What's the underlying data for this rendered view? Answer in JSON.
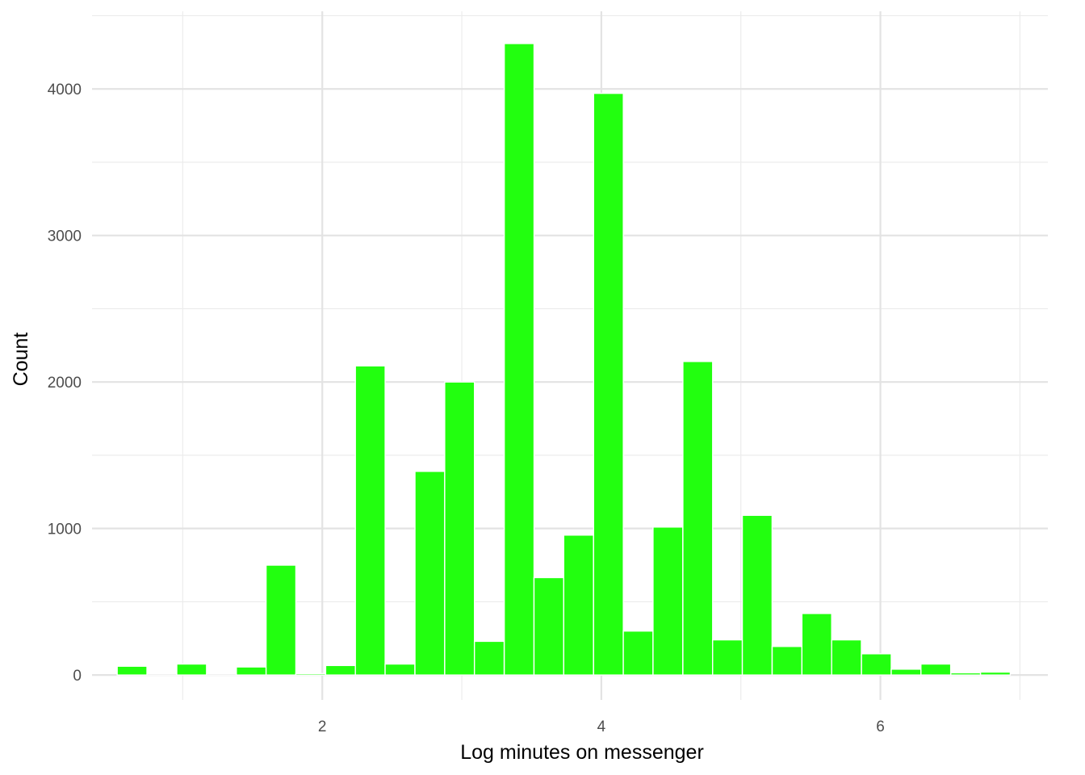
{
  "chart_data": {
    "type": "bar",
    "xlabel": "Log minutes on messenger",
    "ylabel": "Count",
    "xlim": [
      0.35,
      7.2
    ],
    "ylim": [
      -170,
      4530
    ],
    "x_ticks": [
      2,
      4,
      6
    ],
    "x_tick_labels": [
      "2",
      "4",
      "6"
    ],
    "y_ticks": [
      0,
      1000,
      2000,
      3000,
      4000
    ],
    "y_tick_labels": [
      "0",
      "1000",
      "2000",
      "3000",
      "4000"
    ],
    "x_minor_ticks": [
      1,
      3,
      5,
      7
    ],
    "y_minor_ticks": [
      500,
      1500,
      2500,
      3500,
      4500
    ],
    "grid": true,
    "legend": "none",
    "bar_color": "#22ff0f",
    "bin_width": 0.2133,
    "bin_centers": [
      0.637,
      0.851,
      1.064,
      1.277,
      1.491,
      1.704,
      1.917,
      2.131,
      2.344,
      2.557,
      2.771,
      2.984,
      3.197,
      3.411,
      3.624,
      3.837,
      4.051,
      4.264,
      4.477,
      4.691,
      4.904,
      5.117,
      5.331,
      5.544,
      5.757,
      5.971,
      6.184,
      6.397,
      6.611,
      6.824
    ],
    "values": [
      60,
      0,
      75,
      0,
      55,
      750,
      10,
      65,
      2110,
      75,
      1390,
      2000,
      230,
      4310,
      665,
      955,
      3970,
      300,
      1010,
      2140,
      240,
      1090,
      195,
      420,
      240,
      145,
      40,
      75,
      15,
      20
    ]
  }
}
